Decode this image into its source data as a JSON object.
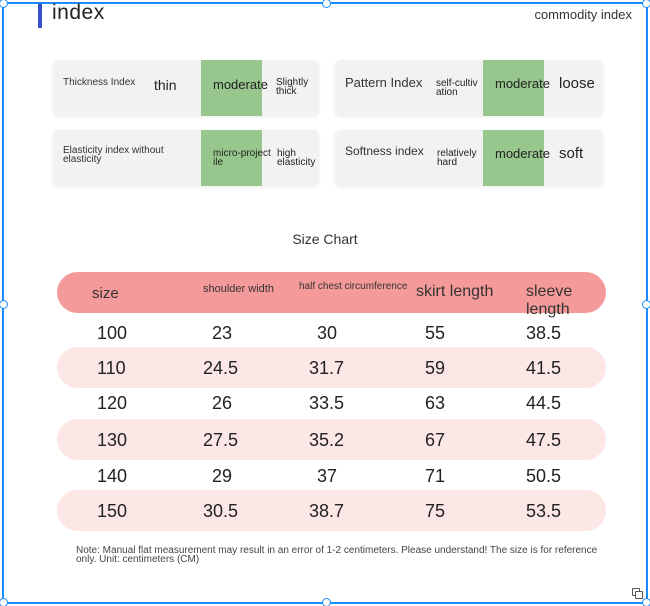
{
  "header": {
    "title": "index",
    "subtitle": "commodity index"
  },
  "indices": [
    {
      "label": "Thickness Index",
      "options": [
        "thin",
        "moderate",
        "Slightly thick"
      ],
      "selected": "moderate"
    },
    {
      "label": "Pattern Index",
      "options": [
        "self-cultivation",
        "moderate",
        "loose"
      ],
      "selected": "moderate"
    },
    {
      "label": "Elasticity index without elasticity",
      "options": [
        "micro-projectile",
        "high elasticity"
      ],
      "selected": "micro-projectile"
    },
    {
      "label": "Softness index",
      "options": [
        "relatively hard",
        "moderate",
        "soft"
      ],
      "selected": "moderate"
    }
  ],
  "size_chart": {
    "title": "Size Chart",
    "columns": [
      "size",
      "shoulder width",
      "half chest circumference",
      "skirt length",
      "sleeve length"
    ],
    "rows": [
      [
        "100",
        "23",
        "30",
        "55",
        "38.5"
      ],
      [
        "110",
        "24.5",
        "31.7",
        "59",
        "41.5"
      ],
      [
        "120",
        "26",
        "33.5",
        "63",
        "44.5"
      ],
      [
        "130",
        "27.5",
        "35.2",
        "67",
        "47.5"
      ],
      [
        "140",
        "29",
        "37",
        "71",
        "50.5"
      ],
      [
        "150",
        "30.5",
        "38.7",
        "75",
        "53.5"
      ]
    ],
    "note": "Note: Manual flat measurement may result in an error of 1-2 centimeters. Please understand! The size is for reference only. Unit: centimeters (CM)"
  },
  "colors": {
    "accent_bar": "#3a4fd0",
    "selected_option": "#97c78c",
    "table_header": "#f59a9a",
    "table_row_shade": "#fce6e6",
    "selection_frame": "#1a8cff"
  },
  "icons": [
    "copy-icon"
  ]
}
